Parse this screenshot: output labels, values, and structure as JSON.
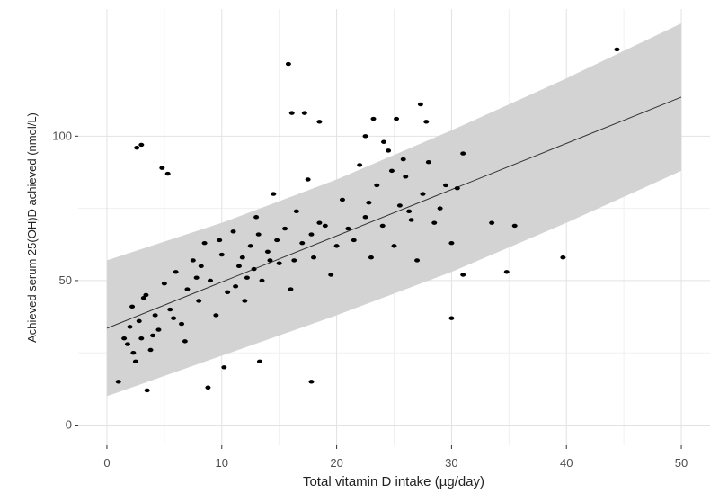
{
  "chart_data": {
    "type": "scatter",
    "title": "",
    "xlabel": "Total vitamin D intake (µg/day)",
    "ylabel": "Achieved serum 25(OH)D achieved (nmol/L)",
    "xlim": [
      -2.5,
      52.5
    ],
    "ylim": [
      -7,
      144
    ],
    "x_ticks": [
      0,
      10,
      20,
      30,
      40,
      50
    ],
    "y_ticks": [
      0,
      50,
      100
    ],
    "x_tick_labels": [
      "0",
      "10",
      "20",
      "30",
      "40",
      "50"
    ],
    "y_tick_labels": [
      "0",
      "50",
      "100"
    ],
    "grid": true,
    "legend": "none",
    "fit_line": {
      "intercept": 33.5,
      "slope": 1.6
    },
    "prediction_band": {
      "x": [
        0,
        10,
        20,
        30,
        40,
        50
      ],
      "lower": [
        10,
        24,
        38,
        53,
        70,
        88
      ],
      "upper": [
        57,
        70,
        85,
        102,
        120,
        139
      ]
    },
    "points": [
      [
        1.8,
        28
      ],
      [
        2.0,
        34
      ],
      [
        2.2,
        41
      ],
      [
        2.5,
        22
      ],
      [
        2.8,
        36
      ],
      [
        3.0,
        30
      ],
      [
        3.4,
        45
      ],
      [
        3.8,
        26
      ],
      [
        4.2,
        38
      ],
      [
        4.5,
        33
      ],
      [
        5.0,
        49
      ],
      [
        5.5,
        40
      ],
      [
        6.0,
        53
      ],
      [
        6.5,
        35
      ],
      [
        7.0,
        47
      ],
      [
        7.5,
        57
      ],
      [
        8.0,
        43
      ],
      [
        8.5,
        63
      ],
      [
        9.0,
        50
      ],
      [
        9.5,
        38
      ],
      [
        10.0,
        59
      ],
      [
        10.5,
        46
      ],
      [
        11.0,
        67
      ],
      [
        11.5,
        55
      ],
      [
        12.0,
        43
      ],
      [
        12.5,
        62
      ],
      [
        13.0,
        72
      ],
      [
        13.5,
        50
      ],
      [
        14.0,
        60
      ],
      [
        14.5,
        80
      ],
      [
        15.0,
        56
      ],
      [
        15.5,
        68
      ],
      [
        16.0,
        47
      ],
      [
        16.5,
        74
      ],
      [
        17.0,
        63
      ],
      [
        17.5,
        85
      ],
      [
        18.0,
        58
      ],
      [
        18.5,
        70
      ],
      [
        19.5,
        52
      ],
      [
        20.5,
        78
      ],
      [
        21.5,
        64
      ],
      [
        22.0,
        90
      ],
      [
        22.5,
        72
      ],
      [
        23.0,
        58
      ],
      [
        23.5,
        83
      ],
      [
        24.0,
        69
      ],
      [
        24.5,
        95
      ],
      [
        25.0,
        62
      ],
      [
        25.5,
        76
      ],
      [
        26.0,
        86
      ],
      [
        26.5,
        71
      ],
      [
        27.0,
        57
      ],
      [
        27.5,
        80
      ],
      [
        28.0,
        91
      ],
      [
        29.0,
        75
      ],
      [
        30.0,
        63
      ],
      [
        30.5,
        82
      ],
      [
        31.0,
        52
      ],
      [
        2.6,
        96
      ],
      [
        3.0,
        97
      ],
      [
        4.8,
        89
      ],
      [
        5.3,
        87
      ],
      [
        15.8,
        125
      ],
      [
        16.1,
        108
      ],
      [
        17.2,
        108
      ],
      [
        18.5,
        105
      ],
      [
        22.5,
        100
      ],
      [
        23.2,
        106
      ],
      [
        25.2,
        106
      ],
      [
        27.3,
        111
      ],
      [
        27.8,
        105
      ],
      [
        24.1,
        98
      ],
      [
        25.8,
        92
      ],
      [
        31.0,
        94
      ],
      [
        33.5,
        70
      ],
      [
        34.8,
        53
      ],
      [
        35.5,
        69
      ],
      [
        39.7,
        58
      ],
      [
        44.4,
        130
      ],
      [
        30.0,
        37
      ],
      [
        17.8,
        15
      ],
      [
        8.8,
        13
      ],
      [
        13.3,
        22
      ],
      [
        10.2,
        20
      ],
      [
        1.0,
        15
      ],
      [
        3.5,
        12
      ],
      [
        1.5,
        30
      ],
      [
        2.3,
        25
      ],
      [
        3.2,
        44
      ],
      [
        4.0,
        31
      ],
      [
        5.8,
        37
      ],
      [
        6.8,
        29
      ],
      [
        7.8,
        51
      ],
      [
        8.2,
        55
      ],
      [
        9.8,
        64
      ],
      [
        11.2,
        48
      ],
      [
        11.8,
        58
      ],
      [
        12.2,
        51
      ],
      [
        12.8,
        54
      ],
      [
        13.2,
        66
      ],
      [
        14.2,
        57
      ],
      [
        14.8,
        64
      ],
      [
        16.3,
        57
      ],
      [
        17.8,
        66
      ],
      [
        19.0,
        69
      ],
      [
        20.0,
        62
      ],
      [
        21.0,
        68
      ],
      [
        22.8,
        77
      ],
      [
        24.8,
        88
      ],
      [
        26.3,
        74
      ],
      [
        28.5,
        70
      ],
      [
        29.5,
        83
      ]
    ]
  }
}
